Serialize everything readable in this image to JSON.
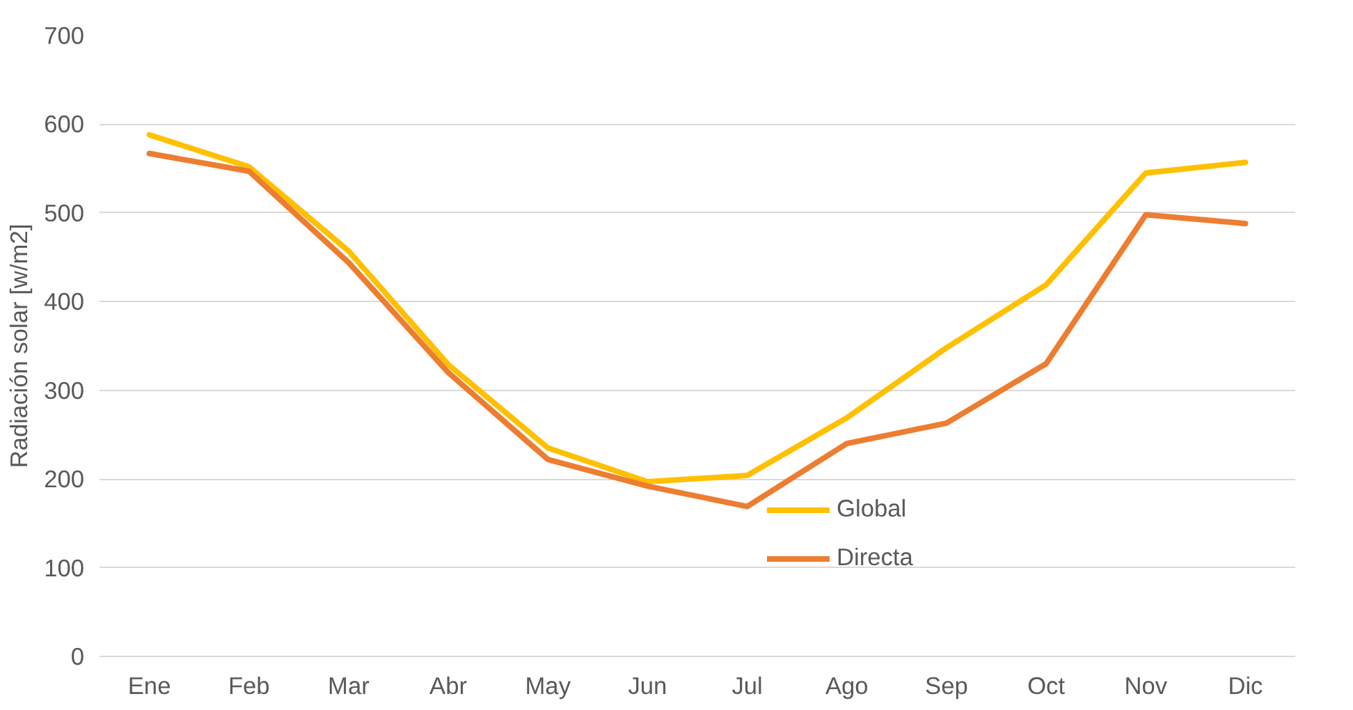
{
  "chart_data": {
    "type": "line",
    "ylabel": "Radiación solar [w/m2]",
    "categories": [
      "Ene",
      "Feb",
      "Mar",
      "Abr",
      "May",
      "Jun",
      "Jul",
      "Ago",
      "Sep",
      "Oct",
      "Nov",
      "Dic"
    ],
    "series": [
      {
        "name": "Global",
        "color": "#ffc000",
        "values": [
          588,
          552,
          457,
          329,
          235,
          197,
          204,
          269,
          348,
          419,
          545,
          557
        ]
      },
      {
        "name": "Directa",
        "color": "#ed7d31",
        "values": [
          567,
          547,
          444,
          320,
          222,
          192,
          169,
          240,
          263,
          330,
          498,
          488
        ]
      }
    ],
    "ylim": [
      0,
      700
    ],
    "yticks": [
      0,
      100,
      200,
      300,
      400,
      500,
      600,
      700
    ],
    "grid": "y",
    "legend": "bottom",
    "marker": "none",
    "line_style": "solid"
  }
}
